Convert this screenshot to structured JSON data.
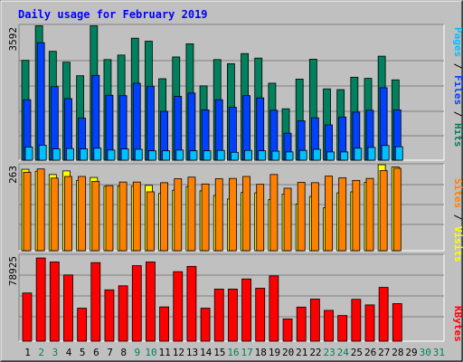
{
  "colors": {
    "background": "#c0c0c0",
    "hits": "#00805c",
    "files": "#0040ff",
    "pages": "#00c0ff",
    "sites": "#ff8000",
    "visits": "#ffff00",
    "kbytes": "#ff0000",
    "title": "#0000ff",
    "weekend_day": "#00805c",
    "weekday": "#000000"
  },
  "chart_data": [
    {
      "type": "bar",
      "title": "Daily usage for February 2019",
      "panel": "hits-files-pages",
      "ymax_label": "3592",
      "ylim": [
        0,
        3592
      ],
      "legend": [
        "Pages",
        "Files",
        "Hits"
      ],
      "categories": [
        "1",
        "2",
        "3",
        "4",
        "5",
        "6",
        "7",
        "8",
        "9",
        "10",
        "11",
        "12",
        "13",
        "14",
        "15",
        "16",
        "17",
        "18",
        "19",
        "20",
        "21",
        "22",
        "23",
        "24",
        "25",
        "26",
        "27",
        "28",
        "29",
        "30",
        "31"
      ],
      "series": [
        {
          "name": "Hits",
          "values": [
            2660,
            3580,
            2900,
            2610,
            2250,
            3580,
            2680,
            2800,
            3250,
            3170,
            2170,
            2750,
            3100,
            1980,
            2680,
            2570,
            2840,
            2720,
            2050,
            1370,
            2160,
            2690,
            1900,
            1880,
            2210,
            2180,
            2770,
            2140,
            null,
            null,
            null
          ]
        },
        {
          "name": "Files",
          "values": [
            1610,
            3130,
            1960,
            1640,
            1120,
            2260,
            1730,
            1720,
            2050,
            1970,
            1300,
            1700,
            1790,
            1340,
            1610,
            1410,
            1720,
            1660,
            1330,
            720,
            1050,
            1130,
            940,
            1150,
            1280,
            1330,
            1930,
            1340,
            null,
            null,
            null
          ]
        },
        {
          "name": "Pages",
          "values": [
            350,
            400,
            300,
            310,
            300,
            320,
            270,
            300,
            290,
            250,
            250,
            270,
            250,
            250,
            260,
            210,
            260,
            250,
            240,
            220,
            260,
            290,
            220,
            220,
            320,
            340,
            390,
            360,
            null,
            null,
            null
          ]
        }
      ]
    },
    {
      "type": "bar",
      "panel": "visits-sites",
      "ymax_label": "263",
      "ylim": [
        0,
        263
      ],
      "legend": [
        "Sites",
        "Visits"
      ],
      "categories": [
        "1",
        "2",
        "3",
        "4",
        "5",
        "6",
        "7",
        "8",
        "9",
        "10",
        "11",
        "12",
        "13",
        "14",
        "15",
        "16",
        "17",
        "18",
        "19",
        "20",
        "21",
        "22",
        "23",
        "24",
        "25",
        "26",
        "27",
        "28",
        "29",
        "30",
        "31"
      ],
      "series": [
        {
          "name": "Visits",
          "values": [
            249,
            243,
            233,
            244,
            215,
            224,
            197,
            198,
            197,
            200,
            175,
            185,
            196,
            183,
            169,
            158,
            178,
            177,
            156,
            173,
            143,
            166,
            131,
            177,
            180,
            209,
            263,
            256,
            null,
            null,
            null
          ]
        },
        {
          "name": "Sites",
          "values": [
            240,
            250,
            222,
            227,
            227,
            212,
            199,
            210,
            210,
            180,
            208,
            220,
            225,
            204,
            220,
            221,
            227,
            203,
            233,
            191,
            209,
            208,
            228,
            223,
            215,
            221,
            245,
            252,
            null,
            null,
            null
          ]
        }
      ]
    },
    {
      "type": "bar",
      "panel": "kbytes",
      "ymax_label": "78925",
      "ylim": [
        0,
        78925
      ],
      "legend": [
        "KBytes"
      ],
      "categories": [
        "1",
        "2",
        "3",
        "4",
        "5",
        "6",
        "7",
        "8",
        "9",
        "10",
        "11",
        "12",
        "13",
        "14",
        "15",
        "16",
        "17",
        "18",
        "19",
        "20",
        "21",
        "22",
        "23",
        "24",
        "25",
        "26",
        "27",
        "28",
        "29",
        "30",
        "31"
      ],
      "series": [
        {
          "name": "KBytes",
          "values": [
            45700,
            78900,
            75100,
            62800,
            31300,
            74500,
            48700,
            52500,
            71600,
            75100,
            32500,
            65900,
            70900,
            31300,
            49400,
            49400,
            59000,
            50200,
            61900,
            21100,
            32300,
            39900,
            29200,
            24300,
            39700,
            34400,
            51000,
            35600,
            null,
            null,
            null
          ]
        }
      ]
    }
  ]
}
